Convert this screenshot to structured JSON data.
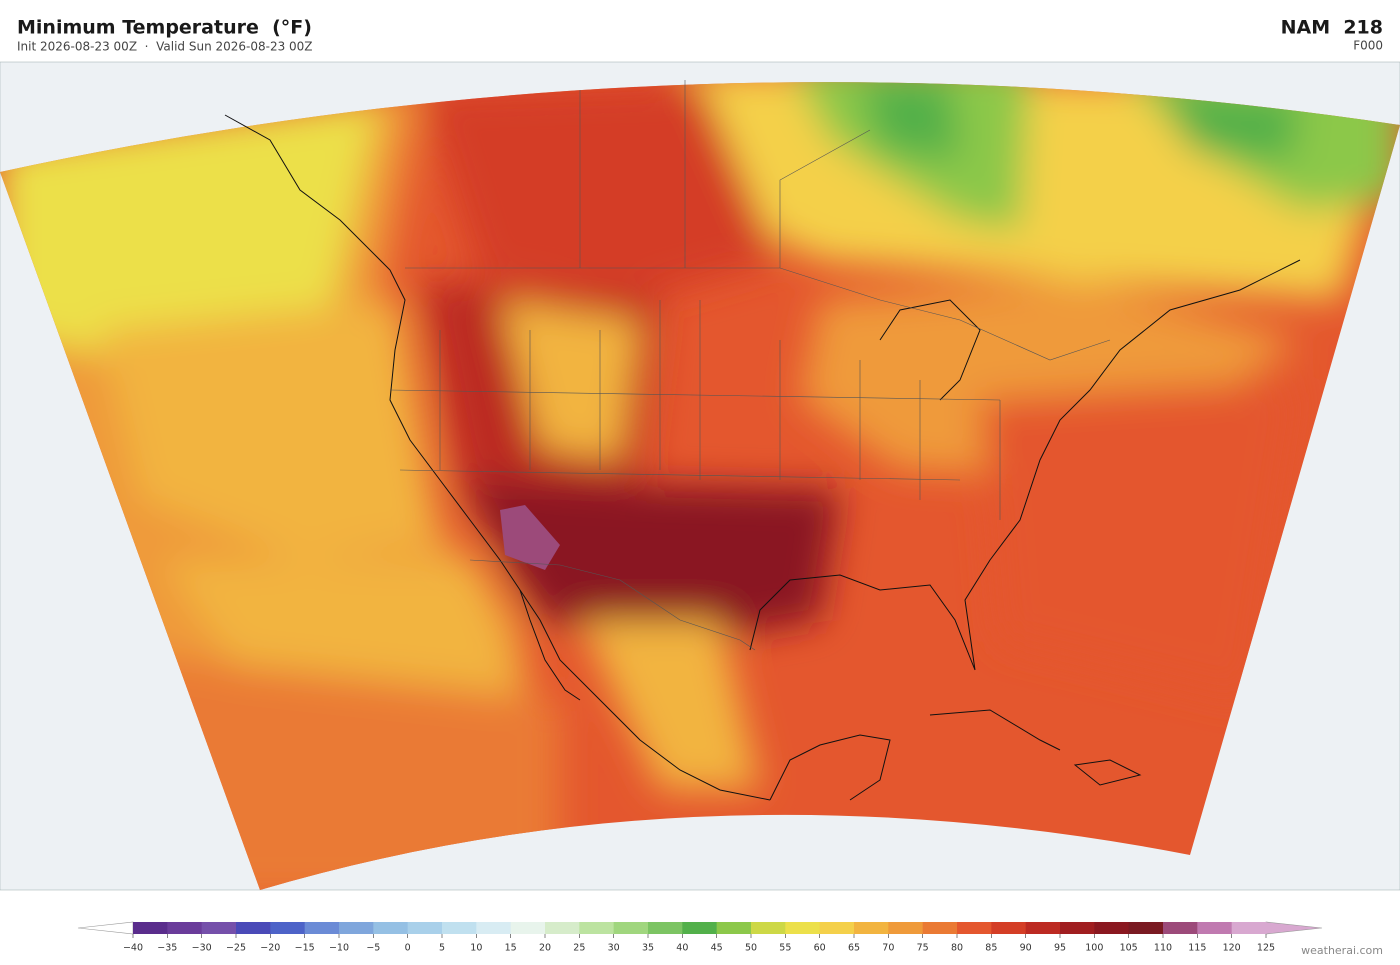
{
  "header": {
    "title": "Minimum Temperature  (°F)",
    "subtitle": "Init 2026-08-23 00Z  ·  Valid Sun 2026-08-23 00Z",
    "model": "NAM  218",
    "forecast_hour": "F000"
  },
  "colorbar": {
    "ticks": [
      {
        "value": -40,
        "label": "−40"
      },
      {
        "value": -35,
        "label": "−35"
      },
      {
        "value": -30,
        "label": "−30"
      },
      {
        "value": -25,
        "label": "−25"
      },
      {
        "value": -20,
        "label": "−20"
      },
      {
        "value": -15,
        "label": "−15"
      },
      {
        "value": -10,
        "label": "−10"
      },
      {
        "value": -5,
        "label": "−5"
      },
      0,
      5,
      10,
      15,
      20,
      25,
      30,
      35,
      40,
      45,
      50,
      55,
      60,
      65,
      70,
      75,
      80,
      85,
      90,
      95,
      100,
      105,
      110,
      115,
      120,
      125
    ],
    "colors": [
      "#5a2d8c",
      "#6a3c9a",
      "#7550aa",
      "#4a4ab8",
      "#4d63c8",
      "#6b8bd6",
      "#7fa6dc",
      "#95c0e4",
      "#a9d0ea",
      "#c0e0ef",
      "#d8ecf3",
      "#e8f4ec",
      "#d6ecca",
      "#bce3a0",
      "#a0d67e",
      "#7cc463",
      "#52b04a",
      "#8cc84a",
      "#cdd846",
      "#ece04a",
      "#f4d04a",
      "#f2b440",
      "#ef9a3a",
      "#ea7a34",
      "#e4572e",
      "#d43e26",
      "#bc2a22",
      "#a01e20",
      "#8a1820",
      "#7a1a22",
      "#9c4a7a",
      "#c07ab0",
      "#d8a8d0"
    ]
  },
  "footer": {
    "watermark": "weatherai.com"
  }
}
